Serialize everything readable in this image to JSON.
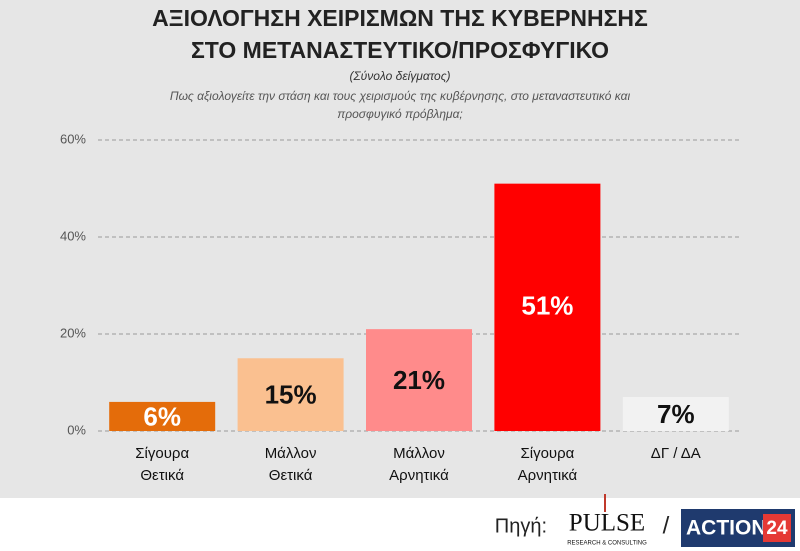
{
  "chart_data": {
    "type": "bar",
    "title": [
      "ΑΞΙΟΛΟΓΗΣΗ ΧΕΙΡΙΣΜΩΝ ΤΗΣ ΚΥΒΕΡΝΗΣΗΣ",
      "ΣΤΟ ΜΕΤΑΝΑΣΤΕΥΤΙΚΟ/ΠΡΟΣΦΥΓΙΚΟ"
    ],
    "subtitle": "(Σύνολο δείγματος)",
    "question": [
      "Πως αξιολογείτε την στάση και τους χειρισμούς της κυβέρνησης, στο μεταναστευτικό και",
      "προσφυγικό πρόβλημα;"
    ],
    "categories": [
      [
        "Σίγουρα",
        "Θετικά"
      ],
      [
        "Μάλλον",
        "Θετικά"
      ],
      [
        "Μάλλον",
        "Αρνητικά"
      ],
      [
        "Σίγουρα",
        "Αρνητικά"
      ],
      [
        "ΔΓ / ΔΑ"
      ]
    ],
    "values": [
      6,
      15,
      21,
      51,
      7
    ],
    "value_labels": [
      "6%",
      "15%",
      "21%",
      "51%",
      "7%"
    ],
    "colors": [
      "#e46c0a",
      "#fac090",
      "#ff8b8b",
      "#ff0000",
      "#f2f2f2"
    ],
    "ylim": [
      0,
      60
    ],
    "yticks": [
      {
        "value": 0,
        "label": "0%"
      },
      {
        "value": 20,
        "label": "20%"
      },
      {
        "value": 40,
        "label": "40%"
      },
      {
        "value": 60,
        "label": "60%"
      }
    ],
    "grid": true
  },
  "footer": {
    "source": "Πηγή:",
    "pulse": "PULSE",
    "pulse_sub": "RESEARCH & CONSULTING",
    "separator": "/",
    "action": "ACTION",
    "action_num": "24"
  }
}
